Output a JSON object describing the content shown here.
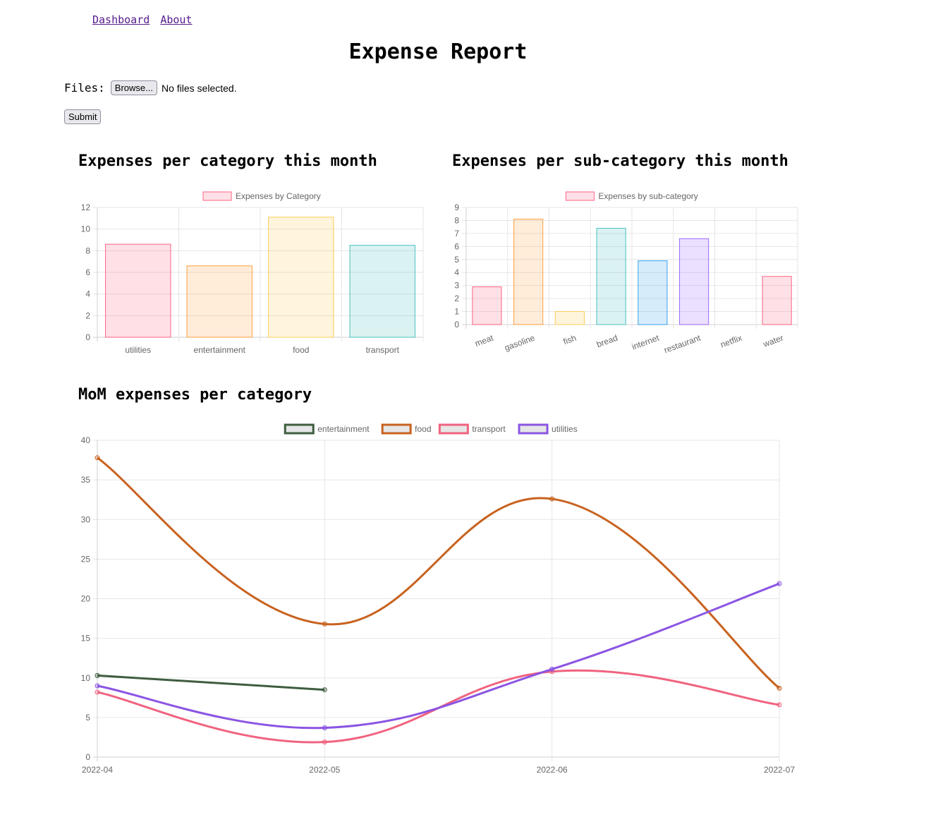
{
  "nav": {
    "dashboard": "Dashboard",
    "about": "About"
  },
  "page_title": "Expense Report",
  "upload": {
    "label": "Files:",
    "browse_label": "Browse...",
    "status": "No files selected.",
    "submit_label": "Submit"
  },
  "section_titles": {
    "category": "Expenses per category this month",
    "subcategory": "Expenses per sub-category this month",
    "mom": "MoM expenses per category"
  },
  "chart_data": [
    {
      "type": "bar",
      "legend": "Expenses by Category",
      "categories": [
        "utilities",
        "entertainment",
        "food",
        "transport"
      ],
      "values": [
        8.6,
        6.6,
        11.1,
        8.5
      ],
      "ylim": [
        0,
        12
      ],
      "yticks": [
        0,
        2,
        4,
        6,
        8,
        10,
        12
      ],
      "grid": true,
      "legend_position": "top",
      "colors": [
        "#ff6384",
        "#ff9f40",
        "#ffcd56",
        "#4bc0c0"
      ]
    },
    {
      "type": "bar",
      "legend": "Expenses by sub-category",
      "categories": [
        "meat",
        "gasoline",
        "fish",
        "bread",
        "internet",
        "restaurant",
        "netflix",
        "water"
      ],
      "values": [
        2.9,
        8.1,
        1.0,
        7.4,
        4.9,
        6.6,
        0,
        3.7
      ],
      "ylim": [
        0,
        9
      ],
      "yticks": [
        0,
        1,
        2,
        3,
        4,
        5,
        6,
        7,
        8,
        9
      ],
      "grid": true,
      "legend_position": "top",
      "colors": [
        "#ff6384",
        "#ff9f40",
        "#ffcd56",
        "#4bc0c0",
        "#36a2eb",
        "#9966ff",
        "#c9cbcf",
        "#ff6384"
      ]
    },
    {
      "type": "line",
      "x": [
        "2022-04",
        "2022-05",
        "2022-06",
        "2022-07"
      ],
      "ylim": [
        0,
        40
      ],
      "yticks": [
        0,
        5,
        10,
        15,
        20,
        25,
        30,
        35,
        40
      ],
      "grid": true,
      "legend_position": "top",
      "series": [
        {
          "name": "entertainment",
          "color": "#3f5d3f",
          "values": [
            10.3,
            8.5,
            null,
            null
          ]
        },
        {
          "name": "food",
          "color": "#c8621f",
          "values": [
            37.8,
            16.8,
            32.6,
            8.7
          ]
        },
        {
          "name": "transport",
          "color": "#f0637f",
          "values": [
            8.2,
            1.9,
            10.8,
            6.6
          ]
        },
        {
          "name": "utilities",
          "color": "#8b55e3",
          "values": [
            9.0,
            3.7,
            11.1,
            21.9
          ]
        }
      ]
    }
  ]
}
